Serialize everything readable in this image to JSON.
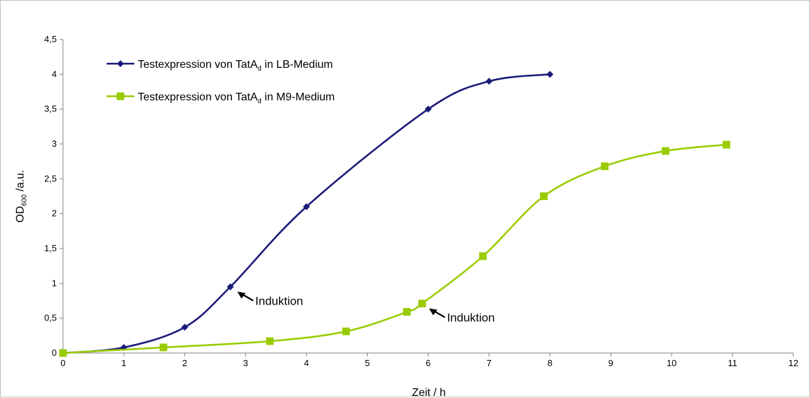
{
  "chart_data": {
    "type": "line",
    "xlabel": "Zeit / h",
    "ylabel_main": "OD",
    "ylabel_sub": "600",
    "ylabel_unit": " /a.u.",
    "xlim": [
      0,
      12
    ],
    "ylim": [
      0,
      4.5
    ],
    "xticks": [
      "0",
      "1",
      "2",
      "3",
      "4",
      "5",
      "6",
      "7",
      "8",
      "9",
      "10",
      "11",
      "12"
    ],
    "yticks": [
      "0",
      "0,5",
      "1",
      "1,5",
      "2",
      "2,5",
      "3",
      "3,5",
      "4",
      "4,5"
    ],
    "grid": false,
    "legend_position": "top-left",
    "series": [
      {
        "legend_main": "Testexpression von TatA",
        "legend_sub": "d",
        "legend_tail": " in LB-Medium",
        "color": "#1a1a7a",
        "marker": "diamond",
        "x": [
          0,
          1,
          2,
          2.75,
          4,
          6,
          7,
          8
        ],
        "y": [
          0,
          0.08,
          0.37,
          0.95,
          2.1,
          3.5,
          3.9,
          4.0
        ]
      },
      {
        "legend_main": "Testexpression von TatA",
        "legend_sub": "d",
        "legend_tail": " in M9-Medium",
        "color": "#99cc00",
        "marker": "square",
        "x": [
          0,
          1.65,
          3.4,
          4.65,
          5.65,
          5.9,
          6.9,
          7.9,
          8.9,
          9.9,
          10.9
        ],
        "y": [
          0,
          0.08,
          0.17,
          0.31,
          0.59,
          0.71,
          1.39,
          2.25,
          2.68,
          2.9,
          2.99
        ]
      }
    ],
    "annotations": [
      {
        "text": "Induktion",
        "x": 2.75,
        "y": 0.95
      },
      {
        "text": "Induktion",
        "x": 5.9,
        "y": 0.71
      }
    ]
  }
}
